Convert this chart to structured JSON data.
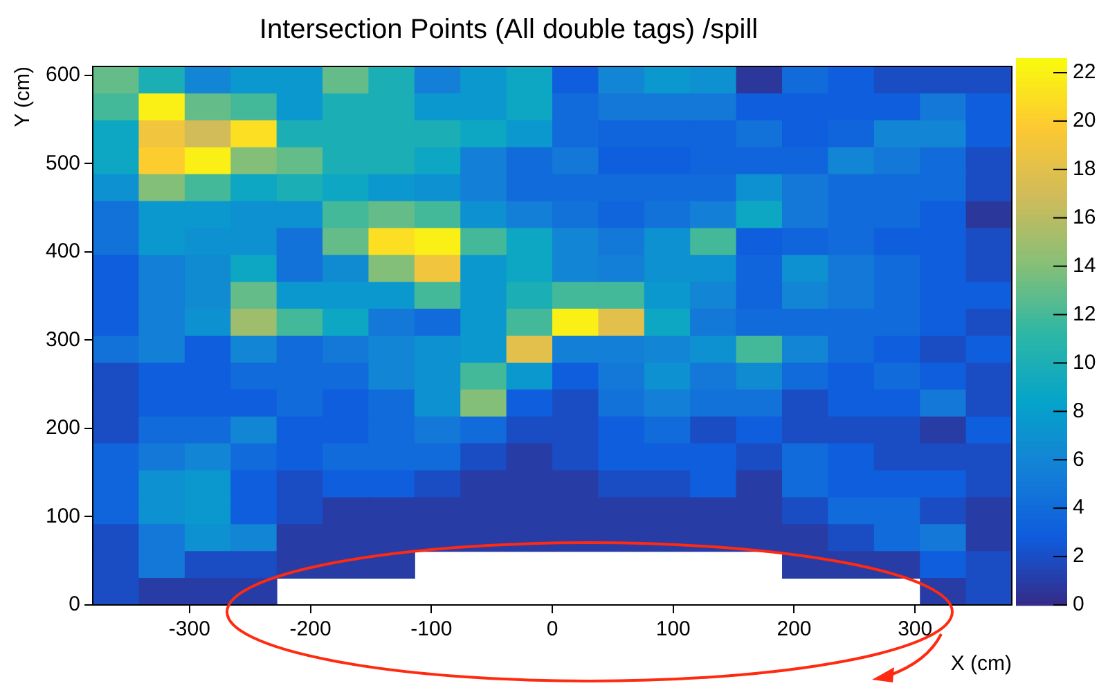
{
  "chart_data": {
    "type": "heatmap",
    "title": "Intersection Points (All double tags) /spill",
    "xlabel": "X (cm)",
    "ylabel": "Y (cm)",
    "xlim": [
      -380,
      380
    ],
    "xticks": [
      -300,
      -200,
      -100,
      0,
      100,
      200,
      300
    ],
    "ylim": [
      0,
      610
    ],
    "yticks": [
      0,
      100,
      200,
      300,
      400,
      500,
      600
    ],
    "clim": [
      0,
      22.6
    ],
    "cticks": [
      0,
      2,
      4,
      6,
      8,
      10,
      12,
      14,
      16,
      18,
      20,
      22
    ],
    "grid": false,
    "cells": [
      [
        13,
        10,
        6,
        7.5,
        7.5,
        13,
        10,
        5.5,
        7.5,
        9,
        3,
        6,
        7.5,
        7,
        0.7,
        4,
        3,
        2,
        2,
        2
      ],
      [
        12,
        22,
        13,
        12,
        7.5,
        10,
        10,
        7.5,
        7.5,
        9,
        4,
        5,
        5,
        5,
        3,
        3,
        3,
        3,
        5,
        3
      ],
      [
        9,
        19,
        17,
        21,
        10,
        10,
        10,
        10,
        9,
        7.5,
        4,
        3.5,
        3.5,
        3.5,
        4.5,
        3,
        3.5,
        6,
        6,
        3
      ],
      [
        9,
        20,
        22,
        14,
        13,
        10,
        10,
        9,
        5.5,
        4,
        5,
        3,
        3,
        3.5,
        3.5,
        3.5,
        6,
        5,
        4,
        2
      ],
      [
        7,
        14,
        12,
        9,
        10,
        9,
        7.5,
        7,
        5.5,
        4,
        4,
        4,
        4,
        4,
        7,
        5,
        4,
        4,
        4,
        2
      ],
      [
        4.5,
        7.5,
        7.5,
        7,
        7,
        12,
        13,
        12,
        7,
        5.5,
        4.5,
        3.5,
        4.5,
        5.5,
        9,
        5,
        4,
        4,
        3,
        0.7
      ],
      [
        4.5,
        7.5,
        7,
        7,
        4.5,
        13,
        21,
        22,
        12,
        9,
        6,
        5,
        7,
        12,
        3,
        3.5,
        4,
        3,
        3,
        2
      ],
      [
        3,
        5.5,
        6.5,
        9,
        4.5,
        6.5,
        14,
        19,
        7.5,
        9,
        6,
        5.5,
        7,
        7,
        3.5,
        7,
        5,
        4,
        3,
        2
      ],
      [
        3,
        5.5,
        6.5,
        13,
        7.5,
        7.5,
        7.5,
        12,
        7.5,
        10,
        12,
        12,
        7.5,
        6,
        3.5,
        6,
        5,
        4,
        3,
        3
      ],
      [
        3,
        5.5,
        7,
        15,
        12,
        9,
        5,
        4,
        7.5,
        12,
        22,
        18,
        9,
        5,
        4,
        4,
        4,
        4,
        3,
        2
      ],
      [
        4.5,
        5.5,
        3,
        6,
        4,
        5,
        6,
        7,
        7.5,
        18,
        5.5,
        5.5,
        6,
        7,
        12,
        6,
        4,
        3,
        2,
        3
      ],
      [
        2,
        3,
        3,
        4,
        4,
        4,
        6,
        7,
        12,
        7.5,
        3,
        5,
        7,
        5,
        6.5,
        4,
        3,
        4,
        3,
        2
      ],
      [
        2,
        3,
        3,
        3,
        4,
        3,
        4,
        7,
        14,
        3,
        2,
        4.5,
        5.5,
        4.5,
        4.5,
        2,
        3,
        3,
        5,
        2
      ],
      [
        2,
        4,
        4,
        6,
        3,
        3,
        4,
        5,
        4,
        2,
        2,
        3,
        4,
        2,
        3,
        2,
        2,
        2,
        1,
        3
      ],
      [
        3.5,
        5,
        6,
        4,
        3,
        4,
        4,
        4,
        2,
        1,
        2,
        3,
        3,
        3,
        2,
        4,
        3,
        2,
        2,
        2
      ],
      [
        3.5,
        7,
        7.5,
        3,
        2,
        3,
        3,
        2,
        1,
        1,
        1,
        2,
        2,
        3,
        1,
        4,
        3,
        3,
        3,
        2
      ],
      [
        3.5,
        7,
        7.5,
        3,
        2,
        1,
        1,
        1,
        1,
        1,
        1,
        1,
        1,
        1,
        1,
        2,
        4,
        4,
        2,
        1
      ],
      [
        2,
        5,
        7,
        6,
        1,
        1,
        1,
        1,
        1,
        1,
        1,
        1,
        1,
        1,
        1,
        1,
        2,
        4,
        5,
        1
      ],
      [
        2,
        5,
        2,
        2,
        1,
        1,
        1,
        null,
        null,
        null,
        null,
        null,
        null,
        null,
        null,
        1,
        1,
        1,
        3,
        2
      ],
      [
        2,
        1,
        1,
        1,
        null,
        null,
        null,
        null,
        null,
        null,
        null,
        null,
        null,
        null,
        null,
        null,
        null,
        null,
        1,
        2
      ]
    ]
  }
}
